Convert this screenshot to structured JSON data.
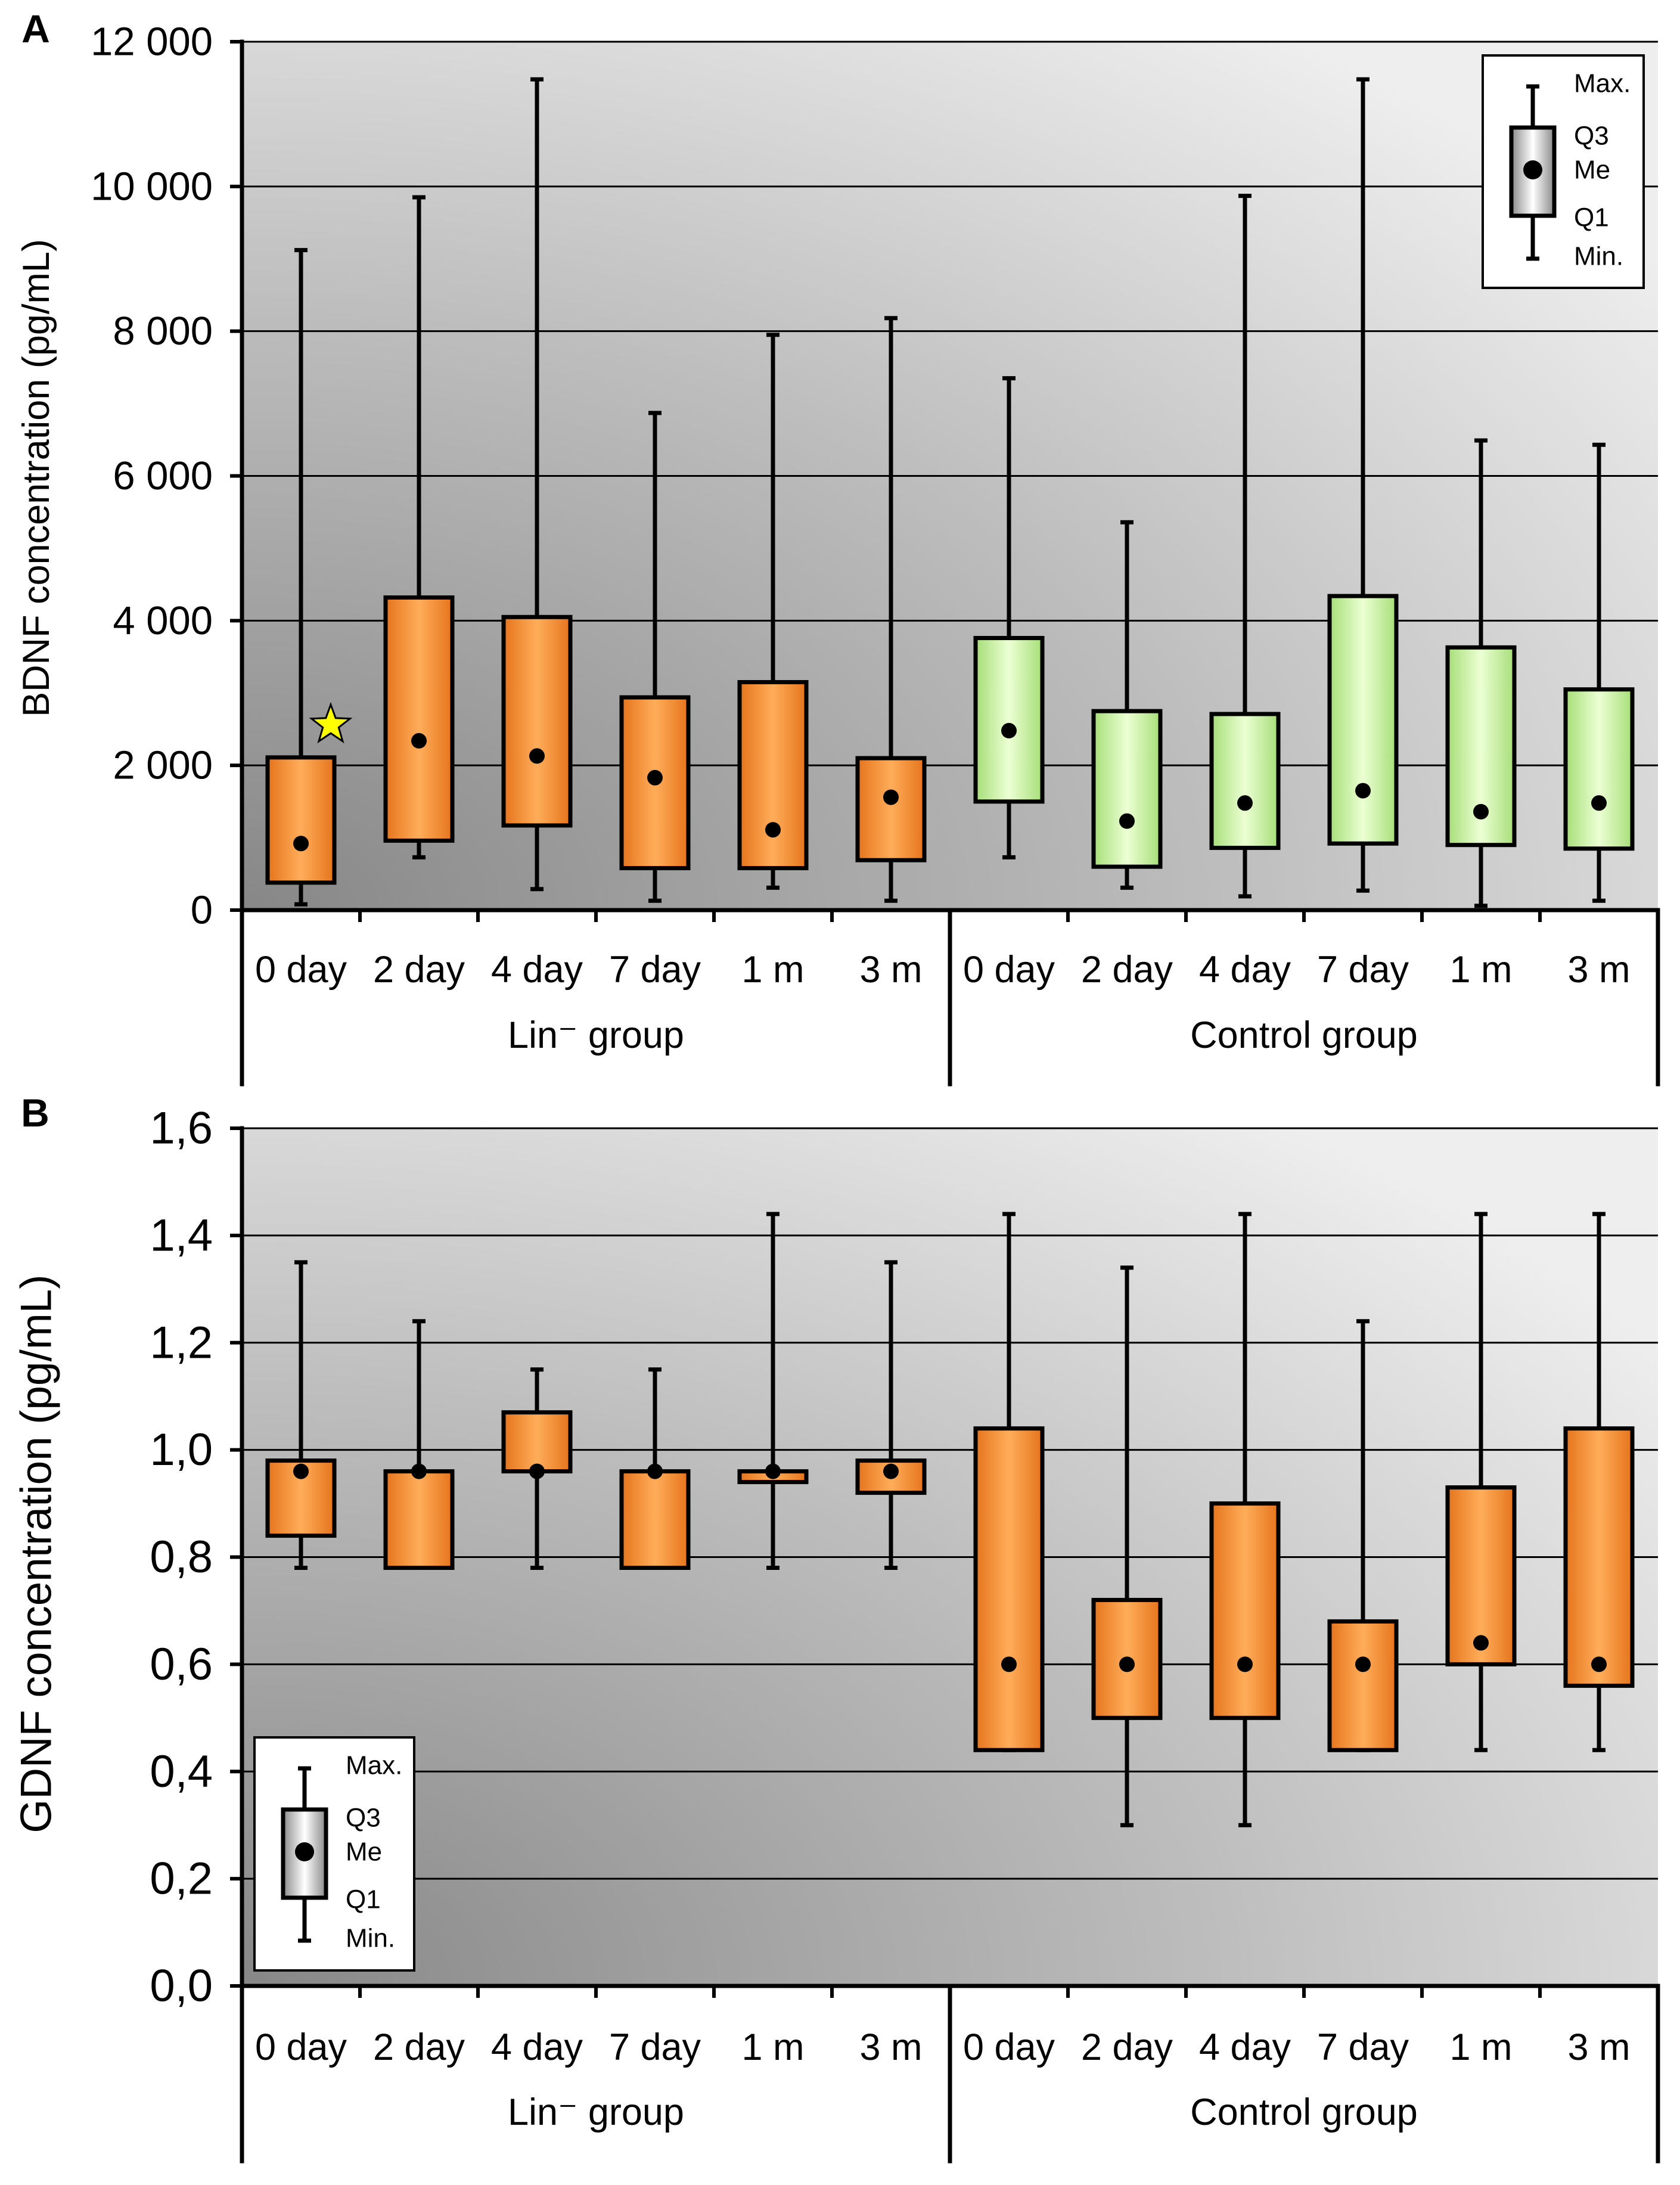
{
  "chart_data": [
    {
      "panel_label": "A",
      "type": "bar",
      "ylabel": "BDNF concentration (pg/mL)",
      "ylim": [
        0,
        12000
      ],
      "yticks": [
        0,
        2000,
        4000,
        6000,
        8000,
        10000,
        12000
      ],
      "ytick_labels": [
        "0",
        "2 000",
        "4 000",
        "6 000",
        "8 000",
        "10 000",
        "12 000"
      ],
      "grid": true,
      "legend": {
        "max": "Max.",
        "q3": "Q3",
        "median": "Me",
        "q1": "Q1",
        "min": "Min."
      },
      "groups": [
        {
          "name": "Lin⁻ group",
          "color": "#e5741c",
          "color_light": "#ffad5a",
          "categories": [
            "0 day",
            "2 day",
            "4 day",
            "7 day",
            "1 m",
            "3 m"
          ],
          "min": [
            80,
            730,
            290,
            130,
            310,
            130
          ],
          "q1": [
            380,
            960,
            1170,
            580,
            580,
            690
          ],
          "median": [
            920,
            2340,
            2130,
            1830,
            1110,
            1560
          ],
          "q3": [
            2110,
            4320,
            4050,
            2940,
            3150,
            2100
          ],
          "max": [
            9120,
            9850,
            11480,
            6870,
            7950,
            8180
          ]
        },
        {
          "name": "Control group",
          "color": "#a6de78",
          "color_light": "#ecffd4",
          "categories": [
            "0 day",
            "2 day",
            "4 day",
            "7 day",
            "1 m",
            "3 m"
          ],
          "min": [
            730,
            310,
            190,
            270,
            60,
            130
          ],
          "q1": [
            1500,
            600,
            860,
            920,
            900,
            850
          ],
          "median": [
            2480,
            1230,
            1480,
            1650,
            1360,
            1480
          ],
          "q3": [
            3760,
            2750,
            2710,
            4340,
            3630,
            3050
          ],
          "max": [
            7350,
            5360,
            9870,
            11480,
            6490,
            6430
          ]
        }
      ],
      "annotations": [
        {
          "icon": "star-icon",
          "group": 0,
          "category": 0,
          "value": 2560,
          "color": "#ffff00"
        }
      ]
    },
    {
      "panel_label": "B",
      "type": "bar",
      "ylabel": "GDNF concentration (pg/mL)",
      "ylim": [
        0,
        1.6
      ],
      "yticks": [
        0,
        0.2,
        0.4,
        0.6,
        0.8,
        1.0,
        1.2,
        1.4,
        1.6
      ],
      "ytick_labels": [
        "0,0",
        "0,2",
        "0,4",
        "0,6",
        "0,8",
        "1,0",
        "1,2",
        "1,4",
        "1,6"
      ],
      "grid": true,
      "legend": {
        "max": "Max.",
        "q3": "Q3",
        "median": "Me",
        "q1": "Q1",
        "min": "Min."
      },
      "groups": [
        {
          "name": "Lin⁻ group",
          "color": "#e5741c",
          "color_light": "#ffad5a",
          "categories": [
            "0 day",
            "2 day",
            "4 day",
            "7 day",
            "1 m",
            "3 m"
          ],
          "min": [
            0.78,
            0.78,
            0.78,
            0.78,
            0.78,
            0.78
          ],
          "q1": [
            0.84,
            0.78,
            0.96,
            0.78,
            0.94,
            0.92
          ],
          "median": [
            0.96,
            0.96,
            0.96,
            0.96,
            0.96,
            0.96
          ],
          "q3": [
            0.98,
            0.96,
            1.07,
            0.96,
            0.96,
            0.98
          ],
          "max": [
            1.35,
            1.24,
            1.15,
            1.15,
            1.44,
            1.35
          ]
        },
        {
          "name": "Control group",
          "color": "#e5741c",
          "color_light": "#ffad5a",
          "categories": [
            "0 day",
            "2 day",
            "4 day",
            "7 day",
            "1 m",
            "3 m"
          ],
          "min": [
            0.44,
            0.3,
            0.3,
            0.44,
            0.44,
            0.44
          ],
          "q1": [
            0.44,
            0.5,
            0.5,
            0.44,
            0.6,
            0.56
          ],
          "median": [
            0.6,
            0.6,
            0.6,
            0.6,
            0.64,
            0.6
          ],
          "q3": [
            1.04,
            0.72,
            0.9,
            0.68,
            0.93,
            1.04
          ],
          "max": [
            1.44,
            1.34,
            1.44,
            1.24,
            1.44,
            1.44
          ]
        }
      ],
      "annotations": []
    }
  ]
}
